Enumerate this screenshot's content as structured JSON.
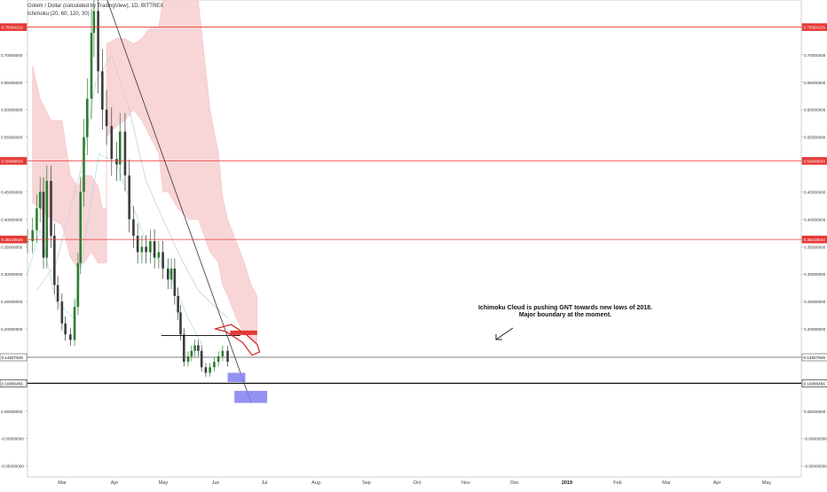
{
  "header": {
    "title": "Golem / Dollar (calculated by TradingView), 1D, BITTREX",
    "indicator": "Ichimoku (20, 60, 120, 30)"
  },
  "colors": {
    "candle_up": "#2e7d32",
    "candle_down": "#3c3c3c",
    "cloud": "#f8d5d7",
    "level_line": "#e53935",
    "price_tag": "#e53935",
    "target_box": "#8080f0",
    "resistance_bar": "#e53935"
  },
  "annotation": {
    "line1": "Ichimoku Cloud is pushing GNT towards new lows of 2018.",
    "line2": "Major boundary at the moment."
  },
  "chart_data": {
    "type": "candlestick",
    "y_axis": {
      "range": [
        -0.07,
        0.8
      ],
      "tick_labels": [
        "0.70000000",
        "0.65000000",
        "0.60000000",
        "0.55000000",
        "0.45000000",
        "0.40000000",
        "0.35000000",
        "0.30000000",
        "0.25000000",
        "0.20000000",
        "0.05000000",
        "-0.00000000",
        "-0.05000000"
      ]
    },
    "x_axis": {
      "tick_labels": [
        "Mar",
        "Apr",
        "May",
        "Jun",
        "Jul",
        "Aug",
        "Sep",
        "Oct",
        "Nov",
        "Dec",
        "2019",
        "Feb",
        "Mar",
        "Apr",
        "May"
      ],
      "bold": [
        "2019"
      ]
    },
    "price_levels": [
      {
        "label": "0.75054216",
        "value": 0.75054216,
        "color": "#e53935"
      },
      {
        "label": "0.50648504",
        "value": 0.50648504,
        "color": "#e53935"
      },
      {
        "label": "0.36318544",
        "value": 0.36318544,
        "color": "#e53935"
      },
      {
        "label": "0.14827949",
        "value": 0.14827949,
        "color": "#555555"
      },
      {
        "label": "0.10086456",
        "value": 0.10086456,
        "color": "#111111"
      }
    ],
    "price_series": [
      [
        "2018-02-14",
        0.36
      ],
      [
        "2018-02-20",
        0.38
      ],
      [
        "2018-02-25",
        0.42
      ],
      [
        "2018-03-01",
        0.45
      ],
      [
        "2018-03-05",
        0.33
      ],
      [
        "2018-03-09",
        0.47
      ],
      [
        "2018-03-14",
        0.37
      ],
      [
        "2018-03-18",
        0.28
      ],
      [
        "2018-03-22",
        0.25
      ],
      [
        "2018-03-27",
        0.21
      ],
      [
        "2018-03-31",
        0.19
      ],
      [
        "2018-04-06",
        0.18
      ],
      [
        "2018-04-11",
        0.24
      ],
      [
        "2018-04-15",
        0.32
      ],
      [
        "2018-04-18",
        0.45
      ],
      [
        "2018-04-22",
        0.55
      ],
      [
        "2018-04-26",
        0.62
      ],
      [
        "2018-05-01",
        0.74
      ],
      [
        "2018-05-04",
        0.78
      ],
      [
        "2018-05-09",
        0.67
      ],
      [
        "2018-05-14",
        0.6
      ],
      [
        "2018-05-19",
        0.57
      ],
      [
        "2018-05-25",
        0.51
      ],
      [
        "2018-05-31",
        0.5
      ],
      [
        "2018-06-04",
        0.56
      ],
      [
        "2018-06-10",
        0.48
      ],
      [
        "2018-06-15",
        0.4
      ],
      [
        "2018-06-20",
        0.37
      ],
      [
        "2018-06-25",
        0.34
      ],
      [
        "2018-06-30",
        0.35
      ],
      [
        "2018-07-05",
        0.34
      ],
      [
        "2018-07-10",
        0.36
      ],
      [
        "2018-07-15",
        0.33
      ],
      [
        "2018-07-20",
        0.34
      ],
      [
        "2018-07-25",
        0.31
      ],
      [
        "2018-07-31",
        0.29
      ],
      [
        "2018-08-04",
        0.31
      ],
      [
        "2018-08-08",
        0.26
      ],
      [
        "2018-08-12",
        0.23
      ],
      [
        "2018-08-15",
        0.19
      ],
      [
        "2018-08-19",
        0.14
      ],
      [
        "2018-08-24",
        0.15
      ],
      [
        "2018-08-28",
        0.16
      ],
      [
        "2018-09-01",
        0.17
      ],
      [
        "2018-09-05",
        0.16
      ],
      [
        "2018-09-09",
        0.13
      ],
      [
        "2018-09-14",
        0.12
      ],
      [
        "2018-09-19",
        0.13
      ],
      [
        "2018-09-24",
        0.14
      ],
      [
        "2018-09-29",
        0.15
      ],
      [
        "2018-10-04",
        0.16
      ],
      [
        "2018-10-10",
        0.14
      ]
    ],
    "cloud": [
      [
        "2018-02-20",
        0.68,
        0.43
      ],
      [
        "2018-03-01",
        0.62,
        0.42
      ],
      [
        "2018-03-14",
        0.58,
        0.4
      ],
      [
        "2018-03-27",
        0.58,
        0.39
      ],
      [
        "2018-04-06",
        0.48,
        0.33
      ],
      [
        "2018-04-15",
        0.46,
        0.31
      ],
      [
        "2018-04-22",
        0.48,
        0.32
      ],
      [
        "2018-05-01",
        0.48,
        0.34
      ],
      [
        "2018-05-09",
        0.46,
        0.32
      ],
      [
        "2018-05-14",
        0.42,
        0.32
      ],
      [
        "2018-05-19",
        0.42,
        0.32
      ],
      [
        "2018-05-19",
        0.72,
        0.55
      ],
      [
        "2018-05-31",
        0.73,
        0.57
      ],
      [
        "2018-06-10",
        0.73,
        0.58
      ],
      [
        "2018-06-20",
        0.72,
        0.6
      ],
      [
        "2018-06-30",
        0.73,
        0.58
      ],
      [
        "2018-07-10",
        0.75,
        0.55
      ],
      [
        "2018-07-20",
        0.75,
        0.52
      ],
      [
        "2018-07-25",
        0.8,
        0.45
      ],
      [
        "2018-07-31",
        0.8,
        0.45
      ],
      [
        "2018-08-12",
        0.8,
        0.42
      ],
      [
        "2018-08-24",
        0.8,
        0.4
      ],
      [
        "2018-09-05",
        0.8,
        0.4
      ],
      [
        "2018-09-19",
        0.6,
        0.34
      ],
      [
        "2018-09-29",
        0.52,
        0.32
      ],
      [
        "2018-10-04",
        0.44,
        0.28
      ],
      [
        "2018-10-10",
        0.4,
        0.26
      ],
      [
        "2018-10-20",
        0.36,
        0.22
      ],
      [
        "2018-10-30",
        0.32,
        0.19
      ],
      [
        "2018-11-07",
        0.28,
        0.18
      ],
      [
        "2018-11-14",
        0.26,
        0.17
      ]
    ],
    "base_line": [
      [
        "2018-02-25",
        0.27
      ],
      [
        "2018-03-20",
        0.32
      ],
      [
        "2018-04-20",
        0.5
      ],
      [
        "2018-05-06",
        0.65
      ],
      [
        "2018-05-25",
        0.7
      ],
      [
        "2018-06-15",
        0.6
      ],
      [
        "2018-07-05",
        0.47
      ],
      [
        "2018-07-25",
        0.4
      ],
      [
        "2018-08-15",
        0.33
      ],
      [
        "2018-09-05",
        0.27
      ],
      [
        "2018-09-25",
        0.24
      ],
      [
        "2018-10-10",
        0.22
      ]
    ],
    "lagging_line": [
      [
        "2018-02-14",
        0.3
      ],
      [
        "2018-03-01",
        0.38
      ],
      [
        "2018-03-20",
        0.25
      ],
      [
        "2018-04-10",
        0.22
      ],
      [
        "2018-04-25",
        0.38
      ],
      [
        "2018-05-10",
        0.52
      ],
      [
        "2018-05-31",
        0.5
      ],
      [
        "2018-06-20",
        0.42
      ],
      [
        "2018-07-10",
        0.34
      ],
      [
        "2018-07-31",
        0.31
      ],
      [
        "2018-08-24",
        0.22
      ],
      [
        "2018-09-10",
        0.17
      ]
    ],
    "trendline": {
      "from": [
        "2018-05-15",
        0.82
      ],
      "to": [
        "2018-11-07",
        0.065
      ]
    },
    "horizontal_resistance": {
      "from": [
        "2018-07-23",
        0.188
      ],
      "to": [
        "2018-10-25",
        0.188
      ]
    },
    "resistance_bar": {
      "from": [
        "2018-10-13",
        0.193
      ],
      "to": [
        "2018-11-14",
        0.193
      ]
    },
    "curve_marker": [
      [
        "2018-09-25",
        0.2
      ],
      [
        "2018-10-14",
        0.208
      ],
      [
        "2018-11-01",
        0.19
      ],
      [
        "2018-11-14",
        0.172
      ],
      [
        "2018-11-17",
        0.158
      ],
      [
        "2018-11-08",
        0.152
      ],
      [
        "2018-10-28",
        0.175
      ],
      [
        "2018-10-08",
        0.195
      ]
    ],
    "target_boxes": [
      {
        "from": [
          "2018-10-10",
          0.103
        ],
        "to": [
          "2018-10-31",
          0.12
        ]
      },
      {
        "from": [
          "2018-10-18",
          0.065
        ],
        "to": [
          "2018-11-26",
          0.087
        ]
      }
    ]
  }
}
